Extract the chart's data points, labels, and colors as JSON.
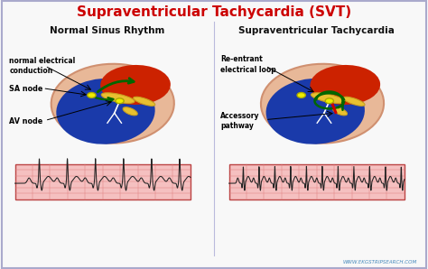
{
  "title": "Supraventricular Tachycardia (SVT)",
  "title_color": "#cc0000",
  "title_fontsize": 11,
  "left_subtitle": "Normal Sinus Rhythm",
  "right_subtitle": "Supraventricular Tachycardia",
  "subtitle_fontsize": 7.5,
  "bg_color": "#f8f8f8",
  "border_color": "#aaaacc",
  "heart_skin": "#e8b898",
  "heart_skin_dark": "#d09070",
  "atrium_color": "#cc2200",
  "ventricle_color": "#1a3aaa",
  "yellow_band": "#e8c030",
  "sa_node_color": "#eeee00",
  "av_node_color": "#eeee00",
  "arrow_color": "#006600",
  "red_path_color": "#cc0000",
  "white_path_color": "#ffffff",
  "label_color": "#000000",
  "ecg_bg": "#f5c0c0",
  "ecg_grid_color": "#e08080",
  "ecg_line_color": "#222222",
  "watermark": "WWW.EKGSTRIPSEARCH.COM",
  "watermark_color": "#4488bb",
  "left_labels": {
    "normal_electrical": "normal electrical\nconduction",
    "sa_node": "SA node",
    "av_node": "AV node"
  },
  "right_labels": {
    "reentrant": "Re-entrant\nelectrical loop",
    "accessory": "Accessory\npathway"
  }
}
